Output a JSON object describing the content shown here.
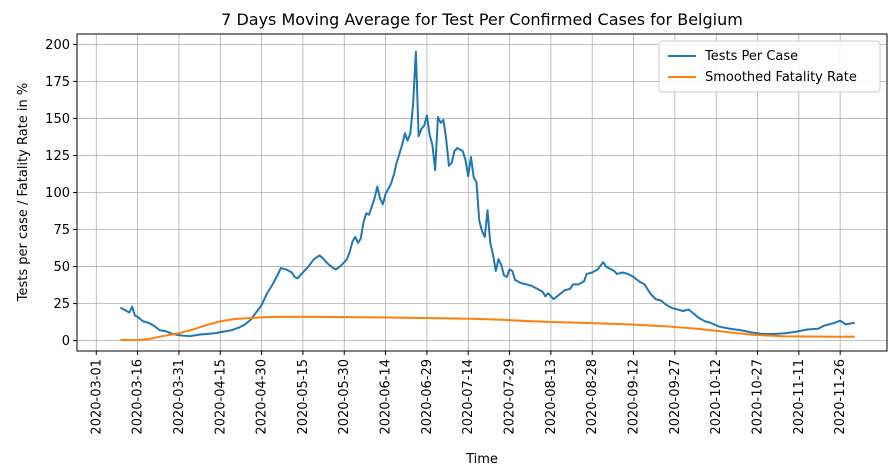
{
  "chart_data": {
    "type": "line",
    "title": "7 Days Moving Average for Test Per Confirmed Cases for Belgium",
    "xlabel": "Time",
    "ylabel": "Tests per case / Fatality Rate in %",
    "xlim": [
      "2020-02-23",
      "2020-12-13"
    ],
    "ylim": [
      -7,
      207
    ],
    "grid": true,
    "legend_position": "top-right",
    "x_ticks": [
      "2020-03-01",
      "2020-03-16",
      "2020-03-31",
      "2020-04-15",
      "2020-04-30",
      "2020-05-15",
      "2020-05-30",
      "2020-06-14",
      "2020-06-29",
      "2020-07-14",
      "2020-07-29",
      "2020-08-13",
      "2020-08-28",
      "2020-09-12",
      "2020-09-27",
      "2020-10-12",
      "2020-10-27",
      "2020-11-11",
      "2020-11-26"
    ],
    "y_ticks": [
      0,
      25,
      50,
      75,
      100,
      125,
      150,
      175,
      200
    ],
    "series": [
      {
        "name": "Tests Per Case",
        "color": "#1f77b4",
        "points": [
          [
            "2020-03-10",
            22
          ],
          [
            "2020-03-11",
            21
          ],
          [
            "2020-03-12",
            20
          ],
          [
            "2020-03-13",
            19
          ],
          [
            "2020-03-14",
            23
          ],
          [
            "2020-03-15",
            17
          ],
          [
            "2020-03-16",
            16
          ],
          [
            "2020-03-18",
            13
          ],
          [
            "2020-03-20",
            12
          ],
          [
            "2020-03-22",
            10
          ],
          [
            "2020-03-24",
            7
          ],
          [
            "2020-03-26",
            6.5
          ],
          [
            "2020-03-28",
            5
          ],
          [
            "2020-03-30",
            4
          ],
          [
            "2020-04-01",
            3.5
          ],
          [
            "2020-04-04",
            3
          ],
          [
            "2020-04-07",
            4
          ],
          [
            "2020-04-10",
            4.5
          ],
          [
            "2020-04-13",
            5
          ],
          [
            "2020-04-16",
            6
          ],
          [
            "2020-04-19",
            7
          ],
          [
            "2020-04-22",
            9
          ],
          [
            "2020-04-24",
            11
          ],
          [
            "2020-04-26",
            14
          ],
          [
            "2020-04-28",
            19
          ],
          [
            "2020-04-30",
            24
          ],
          [
            "2020-05-02",
            32
          ],
          [
            "2020-05-04",
            38
          ],
          [
            "2020-05-06",
            45
          ],
          [
            "2020-05-07",
            49
          ],
          [
            "2020-05-09",
            48
          ],
          [
            "2020-05-11",
            46
          ],
          [
            "2020-05-12",
            43
          ],
          [
            "2020-05-13",
            42
          ],
          [
            "2020-05-15",
            46
          ],
          [
            "2020-05-17",
            50
          ],
          [
            "2020-05-19",
            55
          ],
          [
            "2020-05-21",
            57.5
          ],
          [
            "2020-05-22",
            56
          ],
          [
            "2020-05-24",
            52
          ],
          [
            "2020-05-26",
            49
          ],
          [
            "2020-05-27",
            48
          ],
          [
            "2020-05-29",
            51
          ],
          [
            "2020-05-31",
            55
          ],
          [
            "2020-06-01",
            60
          ],
          [
            "2020-06-02",
            67
          ],
          [
            "2020-06-03",
            70
          ],
          [
            "2020-06-04",
            66
          ],
          [
            "2020-06-05",
            69
          ],
          [
            "2020-06-06",
            80
          ],
          [
            "2020-06-07",
            86
          ],
          [
            "2020-06-08",
            85
          ],
          [
            "2020-06-10",
            96
          ],
          [
            "2020-06-11",
            104
          ],
          [
            "2020-06-12",
            96
          ],
          [
            "2020-06-13",
            92
          ],
          [
            "2020-06-14",
            99
          ],
          [
            "2020-06-16",
            106
          ],
          [
            "2020-06-17",
            112
          ],
          [
            "2020-06-18",
            120
          ],
          [
            "2020-06-19",
            126
          ],
          [
            "2020-06-20",
            132
          ],
          [
            "2020-06-21",
            140
          ],
          [
            "2020-06-22",
            135
          ],
          [
            "2020-06-23",
            140
          ],
          [
            "2020-06-24",
            160
          ],
          [
            "2020-06-25",
            195
          ],
          [
            "2020-06-26",
            138
          ],
          [
            "2020-06-27",
            143
          ],
          [
            "2020-06-28",
            145
          ],
          [
            "2020-06-29",
            152
          ],
          [
            "2020-06-30",
            139
          ],
          [
            "2020-07-01",
            132
          ],
          [
            "2020-07-02",
            115
          ],
          [
            "2020-07-03",
            151
          ],
          [
            "2020-07-04",
            147
          ],
          [
            "2020-07-05",
            149
          ],
          [
            "2020-07-06",
            136
          ],
          [
            "2020-07-07",
            118
          ],
          [
            "2020-07-08",
            120
          ],
          [
            "2020-07-09",
            128
          ],
          [
            "2020-07-10",
            130
          ],
          [
            "2020-07-12",
            128
          ],
          [
            "2020-07-13",
            122
          ],
          [
            "2020-07-14",
            111
          ],
          [
            "2020-07-15",
            124
          ],
          [
            "2020-07-16",
            110
          ],
          [
            "2020-07-17",
            107
          ],
          [
            "2020-07-18",
            81
          ],
          [
            "2020-07-19",
            74
          ],
          [
            "2020-07-20",
            70
          ],
          [
            "2020-07-21",
            88
          ],
          [
            "2020-07-22",
            66
          ],
          [
            "2020-07-23",
            58
          ],
          [
            "2020-07-24",
            47
          ],
          [
            "2020-07-25",
            55
          ],
          [
            "2020-07-26",
            51
          ],
          [
            "2020-07-27",
            44
          ],
          [
            "2020-07-28",
            43
          ],
          [
            "2020-07-29",
            48
          ],
          [
            "2020-07-30",
            47
          ],
          [
            "2020-07-31",
            41
          ],
          [
            "2020-08-02",
            39
          ],
          [
            "2020-08-04",
            38
          ],
          [
            "2020-08-06",
            37
          ],
          [
            "2020-08-08",
            35
          ],
          [
            "2020-08-10",
            33
          ],
          [
            "2020-08-11",
            30
          ],
          [
            "2020-08-12",
            32
          ],
          [
            "2020-08-13",
            30
          ],
          [
            "2020-08-14",
            28
          ],
          [
            "2020-08-16",
            31
          ],
          [
            "2020-08-18",
            34
          ],
          [
            "2020-08-20",
            35
          ],
          [
            "2020-08-21",
            38
          ],
          [
            "2020-08-23",
            38
          ],
          [
            "2020-08-25",
            40
          ],
          [
            "2020-08-26",
            45
          ],
          [
            "2020-08-28",
            46
          ],
          [
            "2020-08-30",
            48
          ],
          [
            "2020-09-01",
            53
          ],
          [
            "2020-09-02",
            50
          ],
          [
            "2020-09-04",
            48
          ],
          [
            "2020-09-05",
            47
          ],
          [
            "2020-09-06",
            45
          ],
          [
            "2020-09-08",
            46
          ],
          [
            "2020-09-10",
            45
          ],
          [
            "2020-09-12",
            43
          ],
          [
            "2020-09-14",
            40
          ],
          [
            "2020-09-16",
            38
          ],
          [
            "2020-09-18",
            32
          ],
          [
            "2020-09-20",
            28
          ],
          [
            "2020-09-22",
            27
          ],
          [
            "2020-09-24",
            24
          ],
          [
            "2020-09-26",
            22
          ],
          [
            "2020-09-28",
            21
          ],
          [
            "2020-09-30",
            20
          ],
          [
            "2020-10-02",
            21
          ],
          [
            "2020-10-04",
            18
          ],
          [
            "2020-10-06",
            15
          ],
          [
            "2020-10-08",
            13
          ],
          [
            "2020-10-10",
            12
          ],
          [
            "2020-10-13",
            9.5
          ],
          [
            "2020-10-17",
            8
          ],
          [
            "2020-10-21",
            7
          ],
          [
            "2020-10-25",
            5.5
          ],
          [
            "2020-10-29",
            4.5
          ],
          [
            "2020-11-02",
            4.5
          ],
          [
            "2020-11-06",
            5
          ],
          [
            "2020-11-10",
            6
          ],
          [
            "2020-11-14",
            7.5
          ],
          [
            "2020-11-18",
            8
          ],
          [
            "2020-11-20",
            10
          ],
          [
            "2020-11-22",
            11
          ],
          [
            "2020-11-24",
            12
          ],
          [
            "2020-11-26",
            13.5
          ],
          [
            "2020-11-28",
            11
          ],
          [
            "2020-12-01",
            12
          ]
        ]
      },
      {
        "name": "Smoothed Fatality Rate",
        "color": "#ff7f0e",
        "points": [
          [
            "2020-03-10",
            0.5
          ],
          [
            "2020-03-15",
            0.3
          ],
          [
            "2020-03-20",
            1
          ],
          [
            "2020-03-25",
            3
          ],
          [
            "2020-03-31",
            5
          ],
          [
            "2020-04-05",
            7.5
          ],
          [
            "2020-04-10",
            10.5
          ],
          [
            "2020-04-15",
            13
          ],
          [
            "2020-04-20",
            14.5
          ],
          [
            "2020-04-25",
            15.2
          ],
          [
            "2020-04-30",
            15.7
          ],
          [
            "2020-05-05",
            16
          ],
          [
            "2020-05-15",
            16.1
          ],
          [
            "2020-06-01",
            15.9
          ],
          [
            "2020-06-15",
            15.6
          ],
          [
            "2020-07-01",
            15.2
          ],
          [
            "2020-07-15",
            14.8
          ],
          [
            "2020-07-25",
            14.2
          ],
          [
            "2020-08-05",
            13.2
          ],
          [
            "2020-08-15",
            12.5
          ],
          [
            "2020-08-28",
            11.8
          ],
          [
            "2020-09-10",
            11
          ],
          [
            "2020-09-25",
            9.5
          ],
          [
            "2020-10-05",
            8
          ],
          [
            "2020-10-15",
            6
          ],
          [
            "2020-10-25",
            4
          ],
          [
            "2020-11-05",
            3
          ],
          [
            "2020-11-15",
            2.8
          ],
          [
            "2020-11-25",
            2.6
          ],
          [
            "2020-12-01",
            2.7
          ]
        ]
      }
    ]
  }
}
